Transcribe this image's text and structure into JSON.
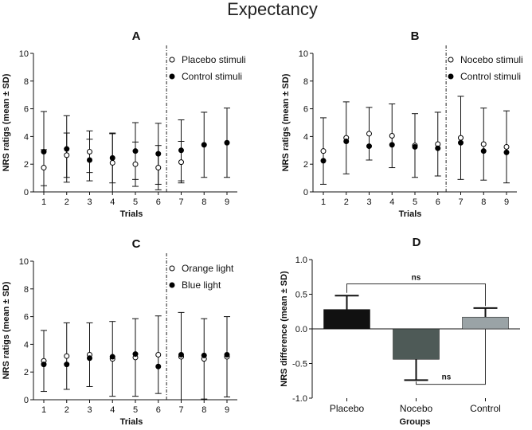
{
  "figure": {
    "title": "Expectancy"
  },
  "chart_data": [
    {
      "panel": "A",
      "type": "scatter",
      "title": "A",
      "xlabel": "Trials",
      "ylabel": "NRS ratigs (mean ± SD)",
      "x": [
        1,
        2,
        3,
        4,
        5,
        6,
        7,
        8,
        9
      ],
      "xticks": [
        "1",
        "2",
        "3",
        "4",
        "5",
        "6",
        "7",
        "8",
        "9"
      ],
      "yticks": [
        "0",
        "2",
        "4",
        "6",
        "8",
        "10"
      ],
      "ylim": [
        0,
        10
      ],
      "divider_after_trial": 6,
      "legend_position": "top-right",
      "series": [
        {
          "name": "Placebo stimuli",
          "marker": "open",
          "x": [
            1,
            2,
            3,
            4,
            5,
            6,
            7
          ],
          "values": [
            1.75,
            2.65,
            2.9,
            2.1,
            2.0,
            1.75,
            2.15
          ],
          "sd": [
            1.3,
            1.6,
            1.5,
            2.1,
            1.6,
            1.6,
            1.5
          ]
        },
        {
          "name": "Control stimuli",
          "marker": "filled",
          "x": [
            1,
            2,
            3,
            4,
            5,
            6,
            7,
            8,
            9
          ],
          "values": [
            2.9,
            3.1,
            2.3,
            2.45,
            2.95,
            2.75,
            3.0,
            3.4,
            3.55
          ],
          "sd": [
            2.9,
            2.4,
            1.5,
            1.8,
            2.05,
            2.2,
            2.2,
            2.35,
            2.5
          ]
        }
      ]
    },
    {
      "panel": "B",
      "type": "scatter",
      "title": "B",
      "xlabel": "Trials",
      "ylabel": "NRS ratigs (mean ± SD)",
      "x": [
        1,
        2,
        3,
        4,
        5,
        6,
        7,
        8,
        9
      ],
      "xticks": [
        "1",
        "2",
        "3",
        "4",
        "5",
        "6",
        "7",
        "8",
        "9"
      ],
      "yticks": [
        "0",
        "2",
        "4",
        "6",
        "8",
        "10"
      ],
      "ylim": [
        0,
        10
      ],
      "divider_after_trial": 6,
      "legend_position": "top-right",
      "series": [
        {
          "name": "Nocebo stimuli",
          "marker": "open",
          "x": [
            1,
            2,
            3,
            4,
            5,
            6,
            7,
            8,
            9
          ],
          "values": [
            2.95,
            3.9,
            4.2,
            4.05,
            3.35,
            3.45,
            3.9,
            3.45,
            3.25
          ],
          "sd": [
            2.4,
            2.6,
            1.9,
            2.3,
            2.3,
            2.3,
            3.0,
            2.6,
            2.6
          ]
        },
        {
          "name": "Control stimuli",
          "marker": "filled",
          "x": [
            1,
            2,
            3,
            4,
            5,
            6,
            7,
            8,
            9
          ],
          "values": [
            2.25,
            3.65,
            3.3,
            3.4,
            3.25,
            3.15,
            3.55,
            2.95,
            2.85
          ]
        }
      ]
    },
    {
      "panel": "C",
      "type": "scatter",
      "title": "C",
      "xlabel": "Trials",
      "ylabel": "NRS ratigs (mean ± SD)",
      "x": [
        1,
        2,
        3,
        4,
        5,
        6,
        7,
        8,
        9
      ],
      "xticks": [
        "1",
        "2",
        "3",
        "4",
        "5",
        "6",
        "7",
        "8",
        "9"
      ],
      "yticks": [
        "0",
        "2",
        "4",
        "6",
        "8",
        "10"
      ],
      "ylim": [
        0,
        10
      ],
      "divider_after_trial": 6,
      "legend_position": "top-right",
      "series": [
        {
          "name": "Orange light",
          "marker": "open",
          "x": [
            1,
            2,
            3,
            4,
            5,
            6,
            7,
            8,
            9
          ],
          "values": [
            2.8,
            3.15,
            3.25,
            2.95,
            3.05,
            3.25,
            3.1,
            2.95,
            3.1
          ],
          "sd": [
            2.2,
            2.4,
            2.3,
            2.7,
            2.8,
            2.8,
            3.2,
            2.9,
            2.9
          ]
        },
        {
          "name": "Blue light",
          "marker": "filled",
          "x": [
            1,
            2,
            3,
            4,
            5,
            6,
            7,
            8,
            9
          ],
          "values": [
            2.55,
            2.55,
            3.0,
            3.1,
            3.3,
            2.4,
            3.25,
            3.2,
            3.25
          ]
        }
      ]
    },
    {
      "panel": "D",
      "type": "bar",
      "title": "D",
      "xlabel": "Groups",
      "ylabel": "NRS difference (mean ± SD)",
      "categories": [
        "Placebo",
        "Nocebo",
        "Control"
      ],
      "values": [
        0.28,
        -0.44,
        0.17
      ],
      "sd": [
        0.2,
        0.3,
        0.13
      ],
      "colors": [
        "#111111",
        "#4e5a57",
        "#9aa3a6"
      ],
      "yticks": [
        "1.0",
        "0.5",
        "0.0",
        "-0.5",
        "-1.0"
      ],
      "ylim": [
        -1.0,
        1.0
      ],
      "annotations": [
        {
          "label": "ns",
          "from": "Placebo",
          "to": "Control"
        },
        {
          "label": "ns",
          "from": "Nocebo",
          "to": "Control"
        }
      ]
    }
  ]
}
